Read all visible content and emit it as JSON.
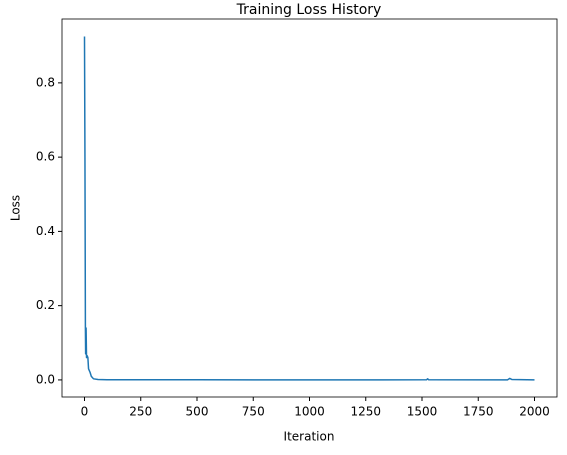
{
  "chart_data": {
    "type": "line",
    "title": "Training Loss History",
    "x_label": "Iteration",
    "y_label": "Loss",
    "x": [
      0,
      2,
      4,
      5,
      7,
      9,
      12,
      15,
      18,
      25,
      30,
      40,
      60,
      100,
      500,
      1000,
      1520,
      1525,
      1530,
      1880,
      1890,
      1900,
      2000
    ],
    "series": [
      {
        "name": "Loss",
        "color": "#1f77b4",
        "values": [
          0.925,
          0.6,
          0.14,
          0.07,
          0.14,
          0.06,
          0.065,
          0.06,
          0.03,
          0.02,
          0.01,
          0.003,
          0.001,
          0.0005,
          0.0003,
          0.0002,
          0.0003,
          0.003,
          0.0003,
          0.0002,
          0.004,
          0.001,
          0.0002
        ]
      }
    ],
    "xlim": [
      -100,
      2100
    ],
    "xticks": [
      0,
      250,
      500,
      750,
      1000,
      1250,
      1500,
      1750,
      2000
    ],
    "ylim": [
      -0.046,
      0.972
    ],
    "yticks": [
      {
        "value": 0,
        "label": "0.0"
      },
      0.2,
      0.4,
      0.6,
      0.8
    ],
    "grid": false
  }
}
